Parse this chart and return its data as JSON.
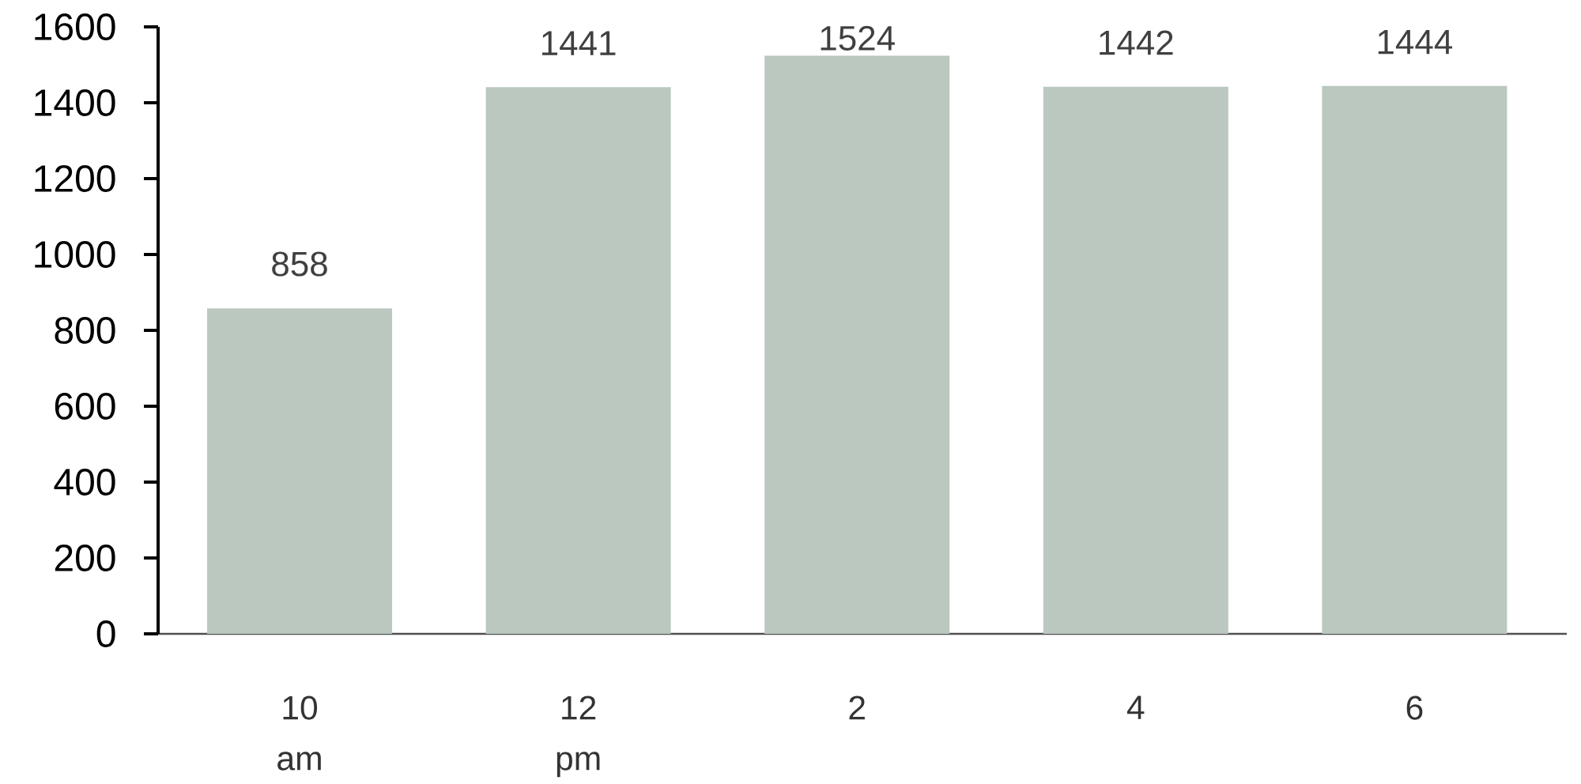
{
  "chart_data": {
    "type": "bar",
    "categories": [
      "10 am",
      "12 pm",
      "2",
      "4",
      "6"
    ],
    "values": [
      858,
      1441,
      1524,
      1442,
      1444
    ],
    "color": "#bac8bf",
    "ylim": [
      0,
      1600
    ],
    "yticks": [
      0,
      200,
      400,
      600,
      800,
      1000,
      1200,
      1400,
      1600
    ],
    "data_labels": true
  }
}
